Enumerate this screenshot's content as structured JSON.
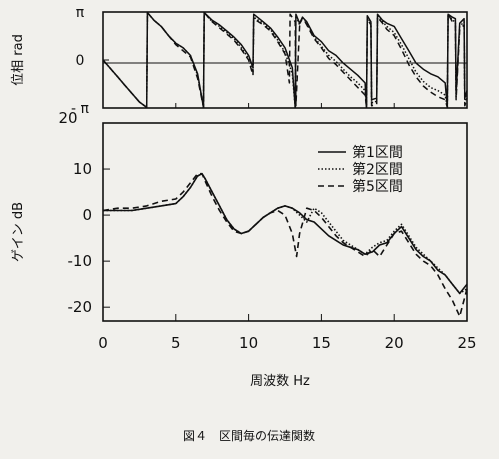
{
  "figure": {
    "caption": "図４　区間毎の伝達関数"
  },
  "chart_data": [
    {
      "type": "line",
      "panel": "phase",
      "ylabel": "位相 rad",
      "ylim": [
        -3.1416,
        3.1416
      ],
      "yticks": [
        {
          "value": 3.1416,
          "label": "π"
        },
        {
          "value": 0,
          "label": "0"
        },
        {
          "value": -3.1416,
          "label": "- π"
        }
      ],
      "xlim": [
        0,
        25
      ],
      "grid": false,
      "zero_line": true,
      "series": [
        {
          "name": "第1区間",
          "style": "solid",
          "x": [
            0,
            0.5,
            1,
            1.5,
            2,
            2.5,
            3,
            3.05,
            3.5,
            4,
            4.5,
            5,
            5.5,
            6,
            6.5,
            6.9,
            6.95,
            7.5,
            8,
            8.5,
            9,
            9.5,
            10,
            10.3,
            10.35,
            11,
            11.5,
            12,
            12.5,
            13,
            13.2,
            13.25,
            13.5,
            13.7,
            14,
            14.5,
            15,
            15.5,
            16,
            16.5,
            17,
            17.5,
            18,
            18.1,
            18.15,
            18.4,
            18.45,
            18.8,
            18.85,
            19.2,
            19.5,
            20,
            20.5,
            21,
            21.5,
            22,
            22.5,
            23,
            23.5,
            23.65,
            23.7,
            24,
            24.2,
            24.25,
            24.5,
            24.8,
            24.85,
            25
          ],
          "y": [
            0,
            -0.55,
            -1.1,
            -1.65,
            -2.2,
            -2.75,
            -3.1,
            3.1,
            2.6,
            2.2,
            1.6,
            1.1,
            0.8,
            0.3,
            -0.9,
            -3.1,
            3.1,
            2.6,
            2.3,
            1.9,
            1.5,
            1.0,
            0.3,
            -0.5,
            3.0,
            2.5,
            2.1,
            1.5,
            0.8,
            -0.5,
            -3.1,
            3.0,
            2.4,
            2.8,
            2.5,
            1.6,
            1.2,
            0.6,
            0.3,
            -0.2,
            -0.6,
            -1.0,
            -1.5,
            -3.1,
            2.9,
            2.5,
            -2.6,
            -2.5,
            3.0,
            2.6,
            2.4,
            2.2,
            1.4,
            0.6,
            -0.2,
            -0.6,
            -0.9,
            -1.1,
            -1.5,
            -3.1,
            3.0,
            2.8,
            2.7,
            -2.2,
            2.4,
            2.7,
            -2.5,
            -2.0
          ]
        },
        {
          "name": "第2区間",
          "style": "dotted",
          "x": [
            0,
            0.5,
            1,
            1.5,
            2,
            2.5,
            3,
            3.05,
            3.5,
            4,
            4.5,
            5,
            5.5,
            6,
            6.5,
            6.9,
            6.95,
            7.5,
            8,
            8.5,
            9,
            9.5,
            10,
            10.3,
            10.35,
            11,
            11.5,
            12,
            12.5,
            13,
            13.2,
            13.25,
            13.5,
            13.7,
            14,
            14.5,
            15,
            15.5,
            16,
            16.5,
            17,
            17.5,
            18,
            18.1,
            18.15,
            18.4,
            18.45,
            18.8,
            18.85,
            19.2,
            19.5,
            20,
            20.5,
            21,
            21.5,
            22,
            22.5,
            23,
            23.5,
            23.65,
            23.7,
            24,
            24.2,
            24.25,
            24.5,
            24.8,
            24.85,
            25
          ],
          "y": [
            0,
            -0.55,
            -1.1,
            -1.65,
            -2.2,
            -2.75,
            -3.1,
            3.1,
            2.6,
            2.2,
            1.6,
            1.1,
            0.8,
            0.3,
            -1.0,
            -3.1,
            3.1,
            2.5,
            2.2,
            1.8,
            1.4,
            0.8,
            0.1,
            -0.8,
            2.8,
            2.4,
            2.0,
            1.3,
            0.5,
            -0.9,
            -3.1,
            2.9,
            2.3,
            2.8,
            2.4,
            1.5,
            0.9,
            0.3,
            -0.1,
            -0.6,
            -1.1,
            -1.5,
            -2.0,
            -3.1,
            2.8,
            2.4,
            -2.8,
            -2.7,
            2.9,
            2.5,
            2.2,
            1.8,
            1.0,
            0.1,
            -0.8,
            -1.4,
            -1.8,
            -2.0,
            -2.3,
            -3.1,
            3.0,
            2.6,
            2.5,
            -2.4,
            2.2,
            2.5,
            -2.8,
            -2.3
          ]
        },
        {
          "name": "第5区間",
          "style": "dashed",
          "x": [
            0,
            0.5,
            1,
            1.5,
            2,
            2.5,
            3,
            3.05,
            3.5,
            4,
            4.5,
            5,
            5.5,
            6,
            6.5,
            6.9,
            6.95,
            7.5,
            8,
            8.5,
            9,
            9.5,
            10,
            10.3,
            10.35,
            11,
            11.5,
            12,
            12.5,
            12.8,
            12.85,
            13.2,
            13.25,
            13.5,
            13.7,
            14,
            14.5,
            15,
            15.5,
            16,
            16.5,
            17,
            17.5,
            18,
            18.1,
            18.15,
            18.4,
            18.45,
            18.8,
            18.85,
            19.2,
            19.5,
            20,
            20.5,
            21,
            21.5,
            22,
            22.5,
            23,
            23.5,
            23.65,
            23.7,
            24,
            24.2,
            24.25,
            24.5,
            24.8,
            24.85,
            25
          ],
          "y": [
            0,
            -0.55,
            -1.1,
            -1.65,
            -2.2,
            -2.75,
            -3.1,
            3.1,
            2.6,
            2.2,
            1.6,
            1.0,
            0.6,
            0.2,
            -1.2,
            -3.1,
            3.1,
            2.5,
            2.1,
            1.7,
            1.3,
            0.7,
            0.0,
            -1.0,
            2.7,
            2.3,
            1.9,
            1.2,
            0.4,
            -1.5,
            3.0,
            2.5,
            -3.0,
            2.2,
            2.8,
            2.3,
            1.4,
            0.8,
            0.1,
            -0.3,
            -0.8,
            -1.3,
            -1.8,
            -2.3,
            -3.1,
            2.7,
            2.3,
            -3.0,
            -2.9,
            2.8,
            2.4,
            2.0,
            1.6,
            0.7,
            -0.3,
            -1.1,
            -1.7,
            -2.1,
            -2.4,
            -2.6,
            -3.1,
            3.0,
            2.5,
            2.3,
            -2.6,
            2.0,
            2.3,
            -3.0,
            -2.5
          ]
        }
      ]
    },
    {
      "type": "line",
      "panel": "gain",
      "ylabel": "ゲイン dB",
      "xlabel": "周波数 Hz",
      "xlim": [
        0,
        25
      ],
      "ylim": [
        -23,
        20
      ],
      "xticks": [
        0,
        5,
        10,
        15,
        20,
        25
      ],
      "yticks": [
        -20,
        -10,
        0,
        10
      ],
      "top_tick_label": "20",
      "grid": false,
      "legend_position": "top-right",
      "series": [
        {
          "name": "第1区間",
          "style": "solid",
          "x": [
            0,
            1,
            2,
            3,
            4,
            5,
            5.5,
            6,
            6.5,
            6.8,
            7,
            7.5,
            8,
            8.5,
            9,
            9.5,
            10,
            10.5,
            11,
            11.5,
            12,
            12.5,
            13,
            13.5,
            14,
            14.5,
            15,
            15.5,
            16,
            16.5,
            17,
            17.5,
            18,
            18.5,
            19,
            19.5,
            20,
            20.5,
            21,
            21.5,
            22,
            22.5,
            23,
            23.5,
            24,
            24.5,
            25
          ],
          "y": [
            1,
            1,
            1,
            1.5,
            2,
            2.5,
            4,
            6,
            8.5,
            9,
            8,
            5,
            2,
            -1,
            -3,
            -4,
            -3.5,
            -2,
            -0.5,
            0.5,
            1.5,
            2,
            1.5,
            0.5,
            -1,
            -1.5,
            -3,
            -4.5,
            -5.5,
            -6.5,
            -7,
            -7.5,
            -8.5,
            -8,
            -6.5,
            -6,
            -4,
            -2.5,
            -5,
            -7.5,
            -9,
            -10,
            -12,
            -13,
            -15,
            -17,
            -15
          ]
        },
        {
          "name": "第2区間",
          "style": "dotted",
          "x": [
            0,
            1,
            2,
            3,
            4,
            5,
            5.5,
            6,
            6.5,
            6.8,
            7,
            7.5,
            8,
            8.5,
            9,
            9.5,
            10,
            10.5,
            11,
            11.5,
            12,
            12.5,
            13,
            13.5,
            14,
            14.5,
            15,
            15.5,
            16,
            16.5,
            17,
            17.5,
            18,
            18.5,
            19,
            19.5,
            20,
            20.5,
            21,
            21.5,
            22,
            22.5,
            23,
            23.5,
            24,
            24.5,
            25
          ],
          "y": [
            1,
            1,
            1,
            1.5,
            2,
            2.5,
            4,
            6,
            8.5,
            9,
            8,
            5,
            2,
            -1,
            -3,
            -4,
            -3.5,
            -2,
            -0.5,
            0.5,
            1.5,
            2,
            1.5,
            0,
            -1.5,
            1.5,
            0.5,
            -1.5,
            -3.5,
            -5.5,
            -6.5,
            -7.5,
            -8.5,
            -7,
            -6,
            -5.5,
            -3.5,
            -2,
            -4.5,
            -7,
            -8.5,
            -10,
            -11.5,
            -13,
            -15,
            -17,
            -16
          ]
        },
        {
          "name": "第5区間",
          "style": "dashed",
          "x": [
            0,
            1,
            2,
            3,
            4,
            5,
            5.5,
            6,
            6.5,
            6.8,
            7,
            7.5,
            8,
            8.5,
            9,
            9.5,
            10,
            10.5,
            11,
            11.5,
            12,
            12.5,
            13,
            13.3,
            13.5,
            14,
            14.5,
            15,
            15.5,
            16,
            16.5,
            17,
            17.5,
            18,
            18.5,
            19,
            19.5,
            20,
            20.5,
            21,
            21.5,
            22,
            22.5,
            23,
            23.5,
            24,
            24.5,
            25
          ],
          "y": [
            1,
            1.5,
            1.5,
            2,
            3,
            3.5,
            5,
            7,
            9,
            9,
            7.5,
            4,
            1,
            -1.5,
            -3.5,
            -4,
            -3.5,
            -2,
            -0.5,
            0.5,
            1,
            0,
            -4,
            -9,
            -4,
            1.5,
            1,
            -0.5,
            -2.5,
            -4.5,
            -6,
            -7,
            -8,
            -9,
            -7.5,
            -9,
            -6.5,
            -4,
            -3.5,
            -6,
            -8.5,
            -10,
            -11,
            -13,
            -16,
            -18.5,
            -22,
            -16
          ]
        }
      ]
    }
  ]
}
